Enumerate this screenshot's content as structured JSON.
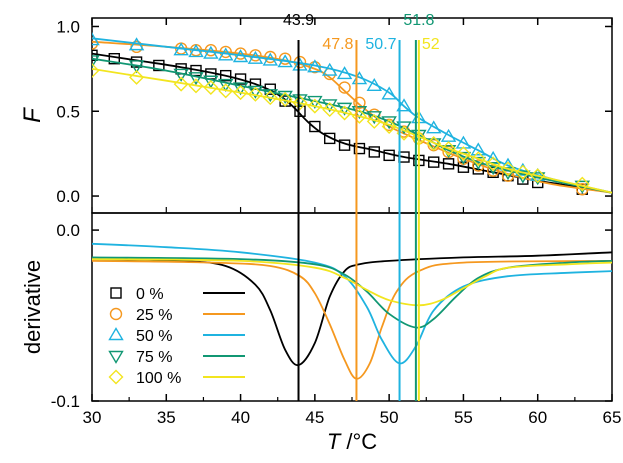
{
  "chart_data": {
    "type": "line",
    "xlabel_var": "T",
    "xlabel_unit": " /°C",
    "xlim": [
      30,
      65
    ],
    "x_ticks": [
      "30",
      "35",
      "40",
      "45",
      "50",
      "55",
      "60",
      "65"
    ],
    "x_tick_values": [
      30,
      35,
      40,
      45,
      50,
      55,
      60,
      65
    ],
    "grid": false,
    "panels": [
      {
        "id": "fraction",
        "ylabel": "F",
        "ylim": [
          -0.1,
          1.05
        ],
        "y_ticks": [
          "0.0",
          "0.5",
          "1.0"
        ],
        "y_tick_values": [
          0,
          0.5,
          1.0
        ]
      },
      {
        "id": "derivative",
        "ylabel": "derivative",
        "ylim": [
          -0.1,
          0.01
        ],
        "y_ticks": [
          "0.0",
          "-0.1"
        ],
        "y_tick_values": [
          0,
          -0.1
        ]
      }
    ],
    "legend": {
      "placement": "lower-left of bottom panel",
      "entries": [
        "0 %",
        "25 %",
        "50 %",
        "75 %",
        "100 %"
      ]
    },
    "series": [
      {
        "name": "0 %",
        "color": "#000000",
        "marker": "square",
        "midpoint": 43.9,
        "midpoint_label": "43.9",
        "points": [
          [
            30,
            0.83
          ],
          [
            31.5,
            0.81
          ],
          [
            33,
            0.79
          ],
          [
            34.5,
            0.77
          ],
          [
            36,
            0.75
          ],
          [
            37,
            0.74
          ],
          [
            38,
            0.72
          ],
          [
            39,
            0.71
          ],
          [
            40,
            0.69
          ],
          [
            41,
            0.66
          ],
          [
            42,
            0.63
          ],
          [
            43,
            0.56
          ],
          [
            44,
            0.5
          ],
          [
            45,
            0.41
          ],
          [
            46,
            0.34
          ],
          [
            47,
            0.3
          ],
          [
            48,
            0.28
          ],
          [
            49,
            0.26
          ],
          [
            50,
            0.24
          ],
          [
            51,
            0.23
          ],
          [
            52,
            0.21
          ],
          [
            53,
            0.2
          ],
          [
            54,
            0.19
          ],
          [
            55,
            0.17
          ],
          [
            56,
            0.16
          ],
          [
            57,
            0.14
          ],
          [
            58,
            0.12
          ],
          [
            59,
            0.1
          ],
          [
            60,
            0.08
          ],
          [
            63,
            0.04
          ]
        ],
        "curve": [
          [
            30,
            0.84
          ],
          [
            33,
            0.8
          ],
          [
            36,
            0.76
          ],
          [
            39,
            0.71
          ],
          [
            41,
            0.66
          ],
          [
            42.5,
            0.6
          ],
          [
            43.5,
            0.53
          ],
          [
            44.5,
            0.44
          ],
          [
            45.5,
            0.37
          ],
          [
            47,
            0.31
          ],
          [
            49,
            0.27
          ],
          [
            51,
            0.23
          ],
          [
            54,
            0.19
          ],
          [
            57,
            0.14
          ],
          [
            60,
            0.09
          ],
          [
            63,
            0.05
          ],
          [
            65,
            0.02
          ]
        ],
        "derivative": [
          [
            30,
            -0.017
          ],
          [
            36,
            -0.018
          ],
          [
            39,
            -0.021
          ],
          [
            41,
            -0.032
          ],
          [
            42,
            -0.047
          ],
          [
            43,
            -0.07
          ],
          [
            43.9,
            -0.079
          ],
          [
            45,
            -0.066
          ],
          [
            46,
            -0.039
          ],
          [
            47,
            -0.024
          ],
          [
            48,
            -0.02
          ],
          [
            50,
            -0.018
          ],
          [
            55,
            -0.016
          ],
          [
            60,
            -0.015
          ],
          [
            65,
            -0.013
          ]
        ]
      },
      {
        "name": "25 %",
        "color": "#f5981f",
        "marker": "circle",
        "midpoint": 47.8,
        "midpoint_label": "47.8",
        "points": [
          [
            30,
            0.9
          ],
          [
            33,
            0.88
          ],
          [
            36,
            0.87
          ],
          [
            37,
            0.86
          ],
          [
            38,
            0.86
          ],
          [
            39,
            0.85
          ],
          [
            40,
            0.84
          ],
          [
            41,
            0.83
          ],
          [
            42,
            0.82
          ],
          [
            43,
            0.81
          ],
          [
            44,
            0.79
          ],
          [
            45,
            0.76
          ],
          [
            46,
            0.72
          ],
          [
            47,
            0.64
          ],
          [
            48,
            0.55
          ],
          [
            49,
            0.48
          ],
          [
            50,
            0.42
          ],
          [
            51,
            0.38
          ],
          [
            52,
            0.34
          ],
          [
            53,
            0.3
          ],
          [
            54,
            0.26
          ],
          [
            55,
            0.22
          ],
          [
            56,
            0.18
          ],
          [
            57,
            0.15
          ],
          [
            58,
            0.12
          ],
          [
            63,
            0.04
          ]
        ],
        "curve": [
          [
            30,
            0.91
          ],
          [
            35,
            0.88
          ],
          [
            40,
            0.84
          ],
          [
            43,
            0.8
          ],
          [
            45,
            0.75
          ],
          [
            46,
            0.7
          ],
          [
            47,
            0.62
          ],
          [
            48,
            0.54
          ],
          [
            49,
            0.47
          ],
          [
            50,
            0.41
          ],
          [
            52,
            0.33
          ],
          [
            55,
            0.22
          ],
          [
            58,
            0.13
          ],
          [
            61,
            0.07
          ],
          [
            65,
            0.02
          ]
        ],
        "derivative": [
          [
            30,
            -0.018
          ],
          [
            38,
            -0.019
          ],
          [
            42,
            -0.021
          ],
          [
            44,
            -0.027
          ],
          [
            45,
            -0.037
          ],
          [
            46,
            -0.055
          ],
          [
            47,
            -0.076
          ],
          [
            47.8,
            -0.087
          ],
          [
            48.7,
            -0.078
          ],
          [
            49.5,
            -0.057
          ],
          [
            50.5,
            -0.036
          ],
          [
            52,
            -0.024
          ],
          [
            55,
            -0.019
          ],
          [
            65,
            -0.018
          ]
        ]
      },
      {
        "name": "50 %",
        "color": "#1fb3e0",
        "marker": "triangle-up",
        "midpoint": 50.7,
        "midpoint_label": "50.7",
        "points": [
          [
            30,
            0.92
          ],
          [
            33,
            0.89
          ],
          [
            36,
            0.86
          ],
          [
            37,
            0.85
          ],
          [
            38,
            0.84
          ],
          [
            39,
            0.83
          ],
          [
            40,
            0.82
          ],
          [
            41,
            0.81
          ],
          [
            42,
            0.8
          ],
          [
            43,
            0.79
          ],
          [
            44,
            0.77
          ],
          [
            45,
            0.76
          ],
          [
            46,
            0.74
          ],
          [
            47,
            0.72
          ],
          [
            48,
            0.69
          ],
          [
            49,
            0.65
          ],
          [
            50,
            0.6
          ],
          [
            51,
            0.53
          ],
          [
            52,
            0.46
          ],
          [
            53,
            0.4
          ],
          [
            54,
            0.35
          ],
          [
            55,
            0.31
          ],
          [
            56,
            0.27
          ],
          [
            57,
            0.22
          ],
          [
            58,
            0.18
          ],
          [
            59,
            0.15
          ],
          [
            60,
            0.12
          ]
        ],
        "curve": [
          [
            30,
            0.93
          ],
          [
            35,
            0.88
          ],
          [
            40,
            0.83
          ],
          [
            45,
            0.77
          ],
          [
            48,
            0.7
          ],
          [
            50,
            0.61
          ],
          [
            51,
            0.53
          ],
          [
            52,
            0.46
          ],
          [
            54,
            0.36
          ],
          [
            56,
            0.27
          ],
          [
            58,
            0.18
          ],
          [
            61,
            0.1
          ],
          [
            65,
            0.02
          ]
        ],
        "derivative": [
          [
            30,
            -0.008
          ],
          [
            35,
            -0.01
          ],
          [
            40,
            -0.013
          ],
          [
            45,
            -0.019
          ],
          [
            47,
            -0.027
          ],
          [
            48.5,
            -0.045
          ],
          [
            49.5,
            -0.064
          ],
          [
            50.7,
            -0.078
          ],
          [
            51.8,
            -0.068
          ],
          [
            53,
            -0.047
          ],
          [
            55,
            -0.033
          ],
          [
            58,
            -0.027
          ],
          [
            62,
            -0.025
          ],
          [
            65,
            -0.024
          ]
        ]
      },
      {
        "name": "75 %",
        "color": "#119773",
        "marker": "triangle-down",
        "midpoint": 51.8,
        "midpoint_label": "51.8",
        "points": [
          [
            30,
            0.8
          ],
          [
            33,
            0.77
          ],
          [
            36,
            0.72
          ],
          [
            37,
            0.7
          ],
          [
            38,
            0.68
          ],
          [
            39,
            0.66
          ],
          [
            40,
            0.64
          ],
          [
            41,
            0.62
          ],
          [
            42,
            0.6
          ],
          [
            43,
            0.59
          ],
          [
            44,
            0.57
          ],
          [
            45,
            0.56
          ],
          [
            46,
            0.54
          ],
          [
            47,
            0.52
          ],
          [
            48,
            0.5
          ],
          [
            49,
            0.47
          ],
          [
            50,
            0.44
          ],
          [
            51,
            0.41
          ],
          [
            52,
            0.36
          ],
          [
            53,
            0.31
          ],
          [
            54,
            0.27
          ],
          [
            55,
            0.23
          ],
          [
            56,
            0.2
          ],
          [
            57,
            0.17
          ],
          [
            58,
            0.14
          ],
          [
            59,
            0.12
          ],
          [
            60,
            0.11
          ],
          [
            63,
            0.06
          ]
        ],
        "curve": [
          [
            30,
            0.81
          ],
          [
            35,
            0.74
          ],
          [
            40,
            0.65
          ],
          [
            45,
            0.56
          ],
          [
            48,
            0.5
          ],
          [
            50,
            0.44
          ],
          [
            52,
            0.36
          ],
          [
            54,
            0.27
          ],
          [
            56,
            0.2
          ],
          [
            58,
            0.15
          ],
          [
            61,
            0.09
          ],
          [
            65,
            0.02
          ]
        ],
        "derivative": [
          [
            30,
            -0.016
          ],
          [
            40,
            -0.017
          ],
          [
            45,
            -0.02
          ],
          [
            47,
            -0.026
          ],
          [
            48.5,
            -0.036
          ],
          [
            50,
            -0.049
          ],
          [
            51.8,
            -0.057
          ],
          [
            53,
            -0.052
          ],
          [
            54.5,
            -0.039
          ],
          [
            56,
            -0.028
          ],
          [
            58,
            -0.022
          ],
          [
            62,
            -0.019
          ],
          [
            65,
            -0.018
          ]
        ]
      },
      {
        "name": "100 %",
        "color": "#f2e51f",
        "marker": "diamond",
        "midpoint": 52,
        "midpoint_label": "52",
        "points": [
          [
            30,
            0.74
          ],
          [
            33,
            0.7
          ],
          [
            36,
            0.66
          ],
          [
            37,
            0.65
          ],
          [
            38,
            0.64
          ],
          [
            39,
            0.62
          ],
          [
            40,
            0.61
          ],
          [
            41,
            0.6
          ],
          [
            42,
            0.58
          ],
          [
            43,
            0.57
          ],
          [
            44,
            0.55
          ],
          [
            45,
            0.53
          ],
          [
            46,
            0.51
          ],
          [
            47,
            0.49
          ],
          [
            48,
            0.47
          ],
          [
            49,
            0.44
          ],
          [
            50,
            0.41
          ],
          [
            51,
            0.37
          ],
          [
            52,
            0.34
          ],
          [
            53,
            0.31
          ],
          [
            54,
            0.28
          ],
          [
            55,
            0.25
          ],
          [
            56,
            0.22
          ],
          [
            57,
            0.19
          ],
          [
            58,
            0.16
          ],
          [
            59,
            0.14
          ],
          [
            60,
            0.12
          ],
          [
            63,
            0.07
          ]
        ],
        "curve": [
          [
            30,
            0.75
          ],
          [
            35,
            0.68
          ],
          [
            40,
            0.61
          ],
          [
            45,
            0.53
          ],
          [
            48,
            0.47
          ],
          [
            50,
            0.42
          ],
          [
            52,
            0.35
          ],
          [
            54,
            0.28
          ],
          [
            56,
            0.22
          ],
          [
            58,
            0.16
          ],
          [
            61,
            0.1
          ],
          [
            65,
            0.02
          ]
        ],
        "derivative": [
          [
            30,
            -0.017
          ],
          [
            40,
            -0.018
          ],
          [
            45,
            -0.022
          ],
          [
            47,
            -0.028
          ],
          [
            48.5,
            -0.035
          ],
          [
            50,
            -0.041
          ],
          [
            52,
            -0.044
          ],
          [
            53.5,
            -0.041
          ],
          [
            55,
            -0.034
          ],
          [
            56.5,
            -0.027
          ],
          [
            58,
            -0.022
          ],
          [
            62,
            -0.02
          ],
          [
            65,
            -0.019
          ]
        ]
      }
    ]
  }
}
